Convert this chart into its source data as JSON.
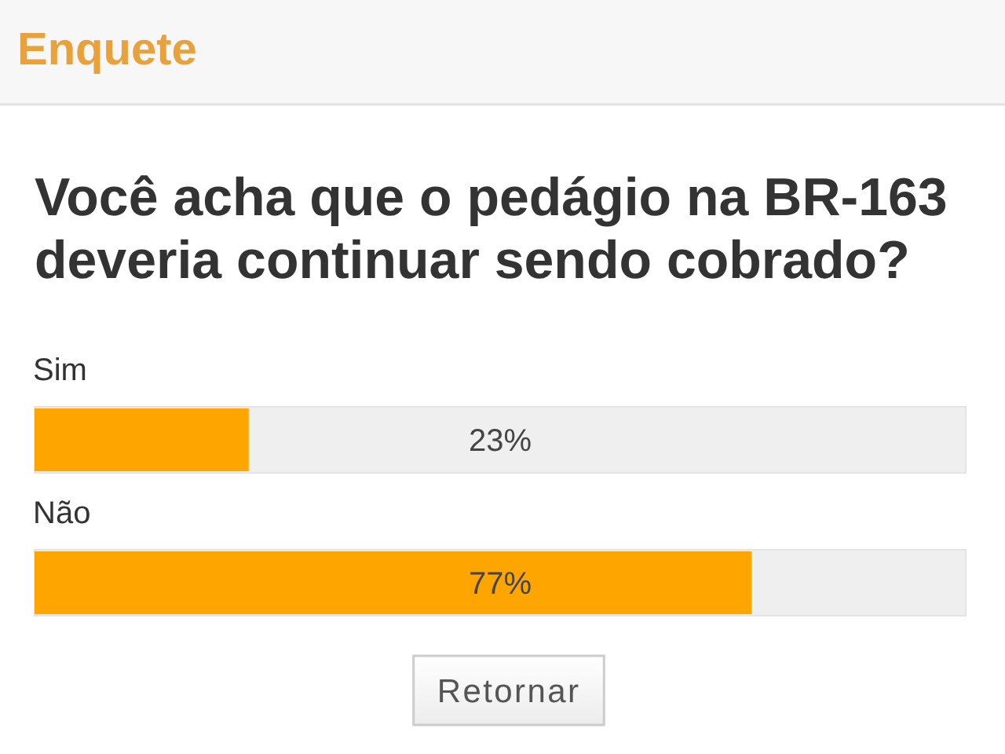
{
  "chart_data": {
    "type": "bar",
    "orientation": "horizontal",
    "title": "Enquete",
    "subtitle": "Você acha que o pedágio na BR-163 deveria continuar sendo cobrado?",
    "categories": [
      "Sim",
      "Não"
    ],
    "values": [
      23,
      77
    ],
    "value_labels": [
      "23%",
      "77%"
    ],
    "color": "#ffa500",
    "xlim": [
      0,
      100
    ],
    "tick_labels": "y",
    "annotations": [
      "Retornar"
    ]
  }
}
